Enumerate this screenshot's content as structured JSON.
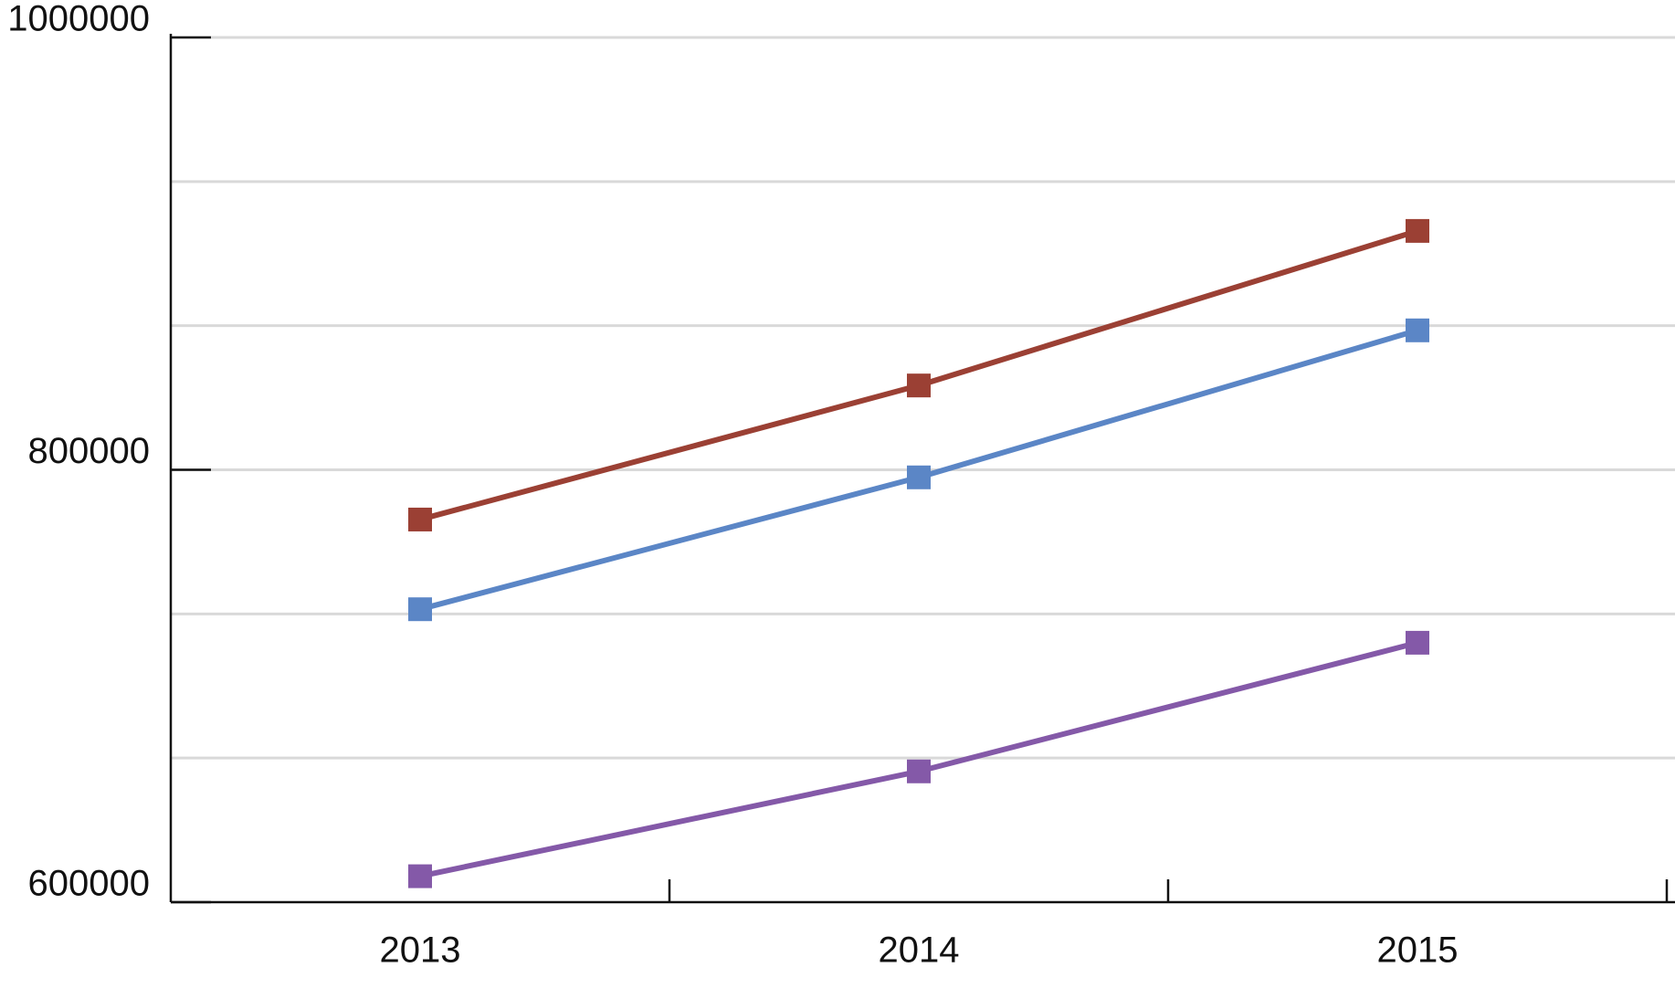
{
  "chart_data": {
    "type": "line",
    "categories": [
      "2013",
      "2014",
      "2015"
    ],
    "series": [
      {
        "color": "#9b4034",
        "values": [
          777000,
          839000,
          910500
        ]
      },
      {
        "color": "#5b86c6",
        "values": [
          735500,
          796500,
          864500
        ]
      },
      {
        "color": "#8459a8",
        "values": [
          612000,
          660500,
          720000
        ]
      }
    ],
    "ylim": [
      600000,
      1000000
    ],
    "yticks": [
      600000,
      800000,
      1000000
    ],
    "grid_lines": [
      666666.67,
      733333.33,
      800000,
      866666.67,
      933333.33,
      1000000
    ],
    "grid": true
  }
}
